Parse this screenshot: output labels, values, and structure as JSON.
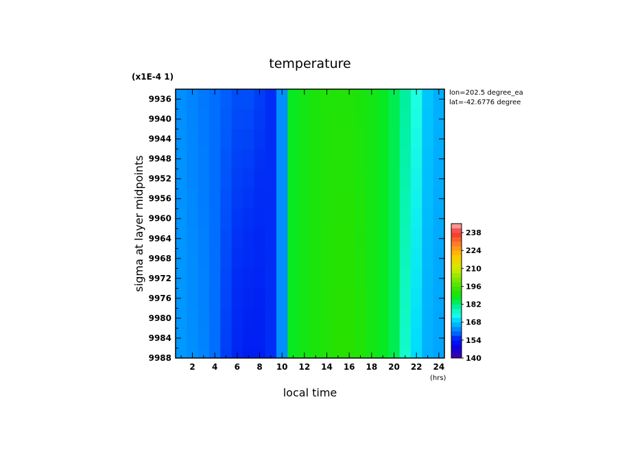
{
  "chart_data": {
    "type": "heatmap",
    "title": "temperature",
    "scale_note": "(x1E-4 1)",
    "xlabel": "local time",
    "x_unit": "(hrs)",
    "ylabel": "sigma at layer midpoints",
    "xlim": [
      0.5,
      24.5
    ],
    "ylim": [
      9988,
      9934
    ],
    "x_ticks": [
      2,
      4,
      6,
      8,
      10,
      12,
      14,
      16,
      18,
      20,
      22,
      24
    ],
    "x_tick_labels": [
      "2",
      "4",
      "6",
      "8",
      "10",
      "12",
      "14",
      "16",
      "18",
      "20",
      "22",
      "24"
    ],
    "y_ticks": [
      9936,
      9940,
      9944,
      9948,
      9952,
      9956,
      9960,
      9964,
      9968,
      9972,
      9976,
      9980,
      9984,
      9988
    ],
    "y_tick_labels": [
      "9936",
      "9940",
      "9944",
      "9948",
      "9952",
      "9956",
      "9960",
      "9964",
      "9968",
      "9972",
      "9976",
      "9980",
      "9984",
      "9988"
    ],
    "info_lines": [
      "lon=202.5 degree_ea",
      "lat=-42.6776 degree"
    ],
    "x": [
      1,
      2,
      3,
      4,
      5,
      6,
      7,
      8,
      9,
      10,
      11,
      12,
      13,
      14,
      15,
      16,
      17,
      18,
      19,
      20,
      21,
      22,
      23,
      24
    ],
    "y": [
      9936,
      9940,
      9944,
      9948,
      9952,
      9956,
      9960,
      9964,
      9968,
      9972,
      9976,
      9980,
      9984,
      9988
    ],
    "z_top": [
      163,
      162,
      161,
      160,
      159,
      158,
      158,
      157,
      156,
      163,
      187,
      189,
      190,
      191,
      191,
      191,
      190,
      189,
      187,
      184,
      180,
      174,
      168,
      166
    ],
    "z_bottom": [
      164,
      163,
      162,
      160,
      157,
      155,
      154,
      154,
      156,
      163,
      187,
      189,
      190,
      191,
      192,
      192,
      191,
      189,
      187,
      184,
      176,
      170,
      166,
      165
    ],
    "colorbar": {
      "min": 140,
      "max": 245,
      "ticks": [
        140,
        154,
        168,
        182,
        196,
        210,
        224,
        238
      ],
      "tick_labels": [
        "140",
        "154",
        "168",
        "182",
        "196",
        "210",
        "224",
        "238"
      ]
    }
  }
}
